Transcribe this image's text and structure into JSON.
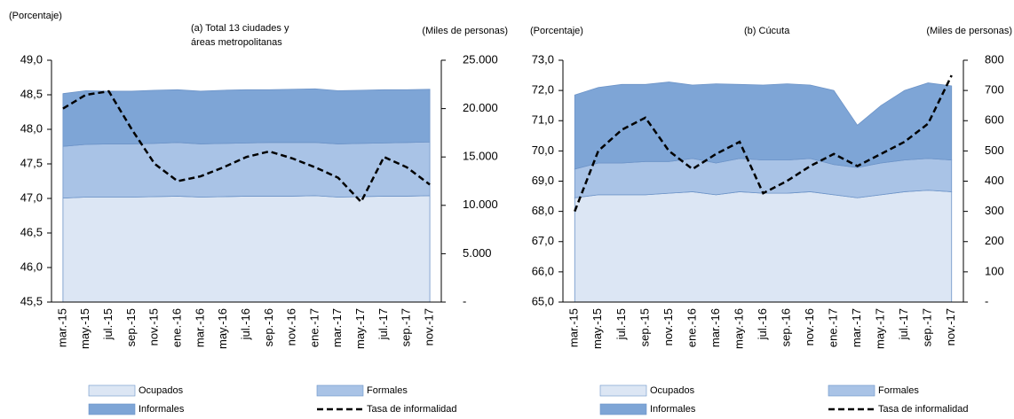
{
  "chart_data": [
    {
      "type": "area",
      "title": [
        "(a) Total 13 ciudades y",
        "áreas metropolitanas"
      ],
      "y_label": "(Porcentaje)",
      "y2_label": "(Miles de personas)",
      "categories": [
        "mar.-15",
        "may.-15",
        "jul.-15",
        "sep.-15",
        "nov.-15",
        "ene.-16",
        "mar.-16",
        "may.-16",
        "jul.-16",
        "sep.-16",
        "nov.-16",
        "ene.-17",
        "mar.-17",
        "may.-17",
        "jul.-17",
        "sep.-17",
        "nov.-17"
      ],
      "ylim": [
        45.5,
        49.0
      ],
      "yticks": [
        {
          "value": 45.5,
          "label": "45,5"
        },
        {
          "value": 46.0,
          "label": "46,0"
        },
        {
          "value": 46.5,
          "label": "46,5"
        },
        {
          "value": 47.0,
          "label": "47,0"
        },
        {
          "value": 47.5,
          "label": "47,5"
        },
        {
          "value": 48.0,
          "label": "48,0"
        },
        {
          "value": 48.5,
          "label": "48,5"
        },
        {
          "value": 49.0,
          "label": "49,0"
        }
      ],
      "y2lim": [
        0,
        25000
      ],
      "y2ticks": [
        {
          "value": 0,
          "label": "-"
        },
        {
          "value": 5000,
          "label": "5.000"
        },
        {
          "value": 10000,
          "label": "10.000"
        },
        {
          "value": 15000,
          "label": "15.000"
        },
        {
          "value": 20000,
          "label": "20.000"
        },
        {
          "value": 25000,
          "label": "25.000"
        }
      ],
      "series": [
        {
          "name": "Ocupados",
          "color": "#dce6f4",
          "axis": "y2",
          "stacked": true,
          "values": [
            10750,
            10850,
            10850,
            10850,
            10900,
            10950,
            10850,
            10900,
            10950,
            10950,
            10950,
            11000,
            10850,
            10900,
            10950,
            10950,
            11000
          ]
        },
        {
          "name": "Formales",
          "color": "#a9c3e6",
          "axis": "y2",
          "stacked": true,
          "values": [
            5350,
            5450,
            5500,
            5500,
            5500,
            5550,
            5500,
            5500,
            5500,
            5550,
            5550,
            5500,
            5500,
            5500,
            5500,
            5550,
            5550
          ]
        },
        {
          "name": "Informales",
          "color": "#7ea5d6",
          "axis": "y2",
          "stacked": true,
          "values": [
            5450,
            5550,
            5450,
            5450,
            5500,
            5450,
            5450,
            5500,
            5500,
            5450,
            5500,
            5550,
            5500,
            5500,
            5500,
            5450,
            5450
          ]
        },
        {
          "name": "Tasa de informalidad",
          "color": "#000000",
          "type": "line",
          "dashed": true,
          "values": [
            48.3,
            48.5,
            48.55,
            48.0,
            47.5,
            47.25,
            47.32,
            47.45,
            47.6,
            47.68,
            47.58,
            47.45,
            47.3,
            46.95,
            47.6,
            47.45,
            47.2
          ]
        }
      ]
    },
    {
      "type": "area",
      "title": [
        "(b) Cúcuta"
      ],
      "y_label": "(Porcentaje)",
      "y2_label": "(Miles de personas)",
      "categories": [
        "mar.-15",
        "may.-15",
        "jul.-15",
        "sep.-15",
        "nov.-15",
        "ene.-16",
        "mar.-16",
        "may.-16",
        "jul.-16",
        "sep.-16",
        "nov.-16",
        "ene.-17",
        "mar.-17",
        "may.-17",
        "jul.-17",
        "sep.-17",
        "nov.-17"
      ],
      "ylim": [
        65.0,
        73.0
      ],
      "yticks": [
        {
          "value": 65.0,
          "label": "65,0"
        },
        {
          "value": 66.0,
          "label": "66,0"
        },
        {
          "value": 67.0,
          "label": "67,0"
        },
        {
          "value": 68.0,
          "label": "68,0"
        },
        {
          "value": 69.0,
          "label": "69,0"
        },
        {
          "value": 70.0,
          "label": "70,0"
        },
        {
          "value": 71.0,
          "label": "71,0"
        },
        {
          "value": 72.0,
          "label": "72,0"
        },
        {
          "value": 73.0,
          "label": "73,0"
        }
      ],
      "y2lim": [
        0,
        800
      ],
      "y2ticks": [
        {
          "value": 0,
          "label": "-"
        },
        100,
        200,
        300,
        400,
        500,
        600,
        700,
        800
      ],
      "series": [
        {
          "name": "Ocupados",
          "color": "#dce6f4",
          "axis": "y2",
          "stacked": true,
          "values": [
            345,
            355,
            355,
            355,
            360,
            365,
            355,
            365,
            360,
            360,
            365,
            355,
            345,
            355,
            365,
            370,
            365
          ]
        },
        {
          "name": "Formales",
          "color": "#a9c3e6",
          "axis": "y2",
          "stacked": true,
          "values": [
            95,
            105,
            105,
            110,
            105,
            110,
            105,
            110,
            110,
            110,
            110,
            100,
            100,
            105,
            105,
            105,
            105
          ]
        },
        {
          "name": "Informales",
          "color": "#7ea5d6",
          "axis": "y2",
          "stacked": true,
          "values": [
            245,
            250,
            260,
            255,
            263,
            243,
            262,
            245,
            248,
            252,
            243,
            245,
            140,
            190,
            230,
            250,
            245
          ]
        },
        {
          "name": "Tasa de informalidad",
          "color": "#000000",
          "type": "line",
          "dashed": true,
          "values": [
            68.0,
            70.0,
            70.7,
            71.1,
            70.0,
            69.4,
            69.9,
            70.3,
            68.6,
            69.0,
            69.5,
            69.9,
            69.5,
            69.9,
            70.3,
            70.9,
            72.5
          ]
        }
      ]
    }
  ]
}
